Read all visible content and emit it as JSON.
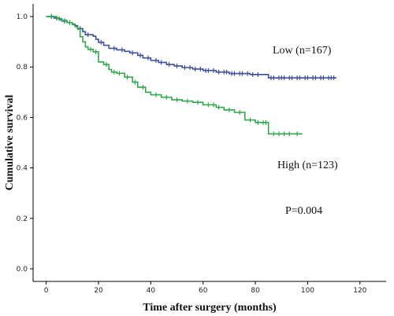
{
  "chart_data": {
    "type": "line",
    "step": true,
    "xlabel": "Time after surgery (months)",
    "ylabel": "Cumulative survival",
    "xlim": [
      -5,
      130
    ],
    "ylim": [
      -0.05,
      1.05
    ],
    "xticks": [
      0,
      20,
      40,
      60,
      80,
      100,
      120
    ],
    "yticks": [
      0.0,
      0.2,
      0.4,
      0.6,
      0.8,
      1.0
    ],
    "ytick_labels": [
      "0.0",
      "0.2",
      "0.4",
      "0.6",
      "0.8",
      "1.0"
    ],
    "grid": false,
    "series": [
      {
        "name": "Low (n=167)",
        "color": "#3a4f9a",
        "points": [
          [
            0,
            1.0
          ],
          [
            3,
            1.0
          ],
          [
            3,
            0.994
          ],
          [
            5,
            0.988
          ],
          [
            6,
            0.982
          ],
          [
            8,
            0.976
          ],
          [
            10,
            0.97
          ],
          [
            11,
            0.964
          ],
          [
            12,
            0.952
          ],
          [
            14,
            0.94
          ],
          [
            15,
            0.928
          ],
          [
            18,
            0.922
          ],
          [
            19,
            0.91
          ],
          [
            20,
            0.898
          ],
          [
            22,
            0.886
          ],
          [
            24,
            0.874
          ],
          [
            27,
            0.868
          ],
          [
            30,
            0.862
          ],
          [
            32,
            0.856
          ],
          [
            35,
            0.846
          ],
          [
            37,
            0.836
          ],
          [
            40,
            0.826
          ],
          [
            43,
            0.818
          ],
          [
            46,
            0.81
          ],
          [
            49,
            0.804
          ],
          [
            52,
            0.798
          ],
          [
            56,
            0.792
          ],
          [
            60,
            0.786
          ],
          [
            65,
            0.78
          ],
          [
            70,
            0.774
          ],
          [
            78,
            0.77
          ],
          [
            85,
            0.757
          ],
          [
            111,
            0.757
          ]
        ],
        "censor_x": [
          2,
          4,
          7,
          9,
          13,
          16,
          21,
          26,
          29,
          33,
          36,
          39,
          42,
          44,
          47,
          50,
          53,
          55,
          57,
          59,
          61,
          62,
          64,
          66,
          68,
          69,
          71,
          72,
          74,
          75,
          77,
          79,
          81,
          86,
          87,
          89,
          90,
          91,
          93,
          94,
          96,
          97,
          99,
          100,
          102,
          103,
          105,
          106,
          108,
          109,
          110
        ]
      },
      {
        "name": "High (n=123)",
        "color": "#2ea84a",
        "points": [
          [
            0,
            1.0
          ],
          [
            4,
            1.0
          ],
          [
            4,
            0.992
          ],
          [
            6,
            0.984
          ],
          [
            8,
            0.976
          ],
          [
            10,
            0.968
          ],
          [
            11,
            0.96
          ],
          [
            12,
            0.95
          ],
          [
            13,
            0.92
          ],
          [
            14,
            0.9
          ],
          [
            15,
            0.88
          ],
          [
            16,
            0.87
          ],
          [
            18,
            0.86
          ],
          [
            20,
            0.82
          ],
          [
            22,
            0.81
          ],
          [
            24,
            0.79
          ],
          [
            25,
            0.78
          ],
          [
            27,
            0.775
          ],
          [
            30,
            0.76
          ],
          [
            33,
            0.74
          ],
          [
            35,
            0.72
          ],
          [
            38,
            0.7
          ],
          [
            40,
            0.69
          ],
          [
            44,
            0.68
          ],
          [
            48,
            0.67
          ],
          [
            52,
            0.665
          ],
          [
            56,
            0.66
          ],
          [
            60,
            0.65
          ],
          [
            65,
            0.64
          ],
          [
            68,
            0.63
          ],
          [
            72,
            0.62
          ],
          [
            76,
            0.59
          ],
          [
            80,
            0.58
          ],
          [
            85,
            0.535
          ],
          [
            98,
            0.535
          ]
        ],
        "censor_x": [
          2,
          5,
          7,
          9,
          17,
          19,
          23,
          26,
          28,
          31,
          34,
          37,
          42,
          46,
          50,
          54,
          58,
          62,
          64,
          66,
          70,
          74,
          78,
          81,
          83,
          84,
          87,
          89,
          91,
          93,
          96
        ]
      }
    ],
    "annotations": [
      "Low (n=167)",
      "High (n=123)",
      "P=0.004"
    ]
  }
}
